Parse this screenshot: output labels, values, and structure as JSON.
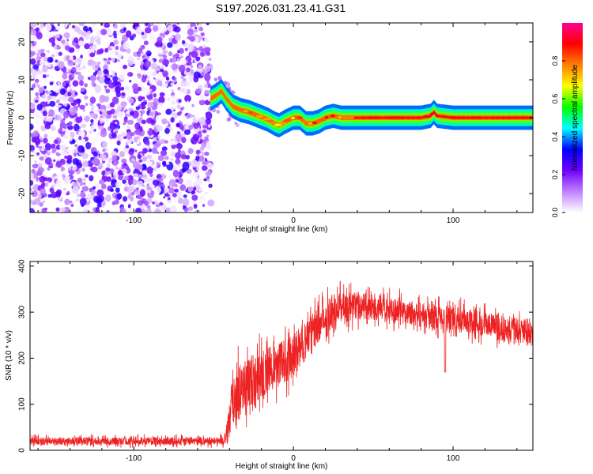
{
  "title": "S197.2026.031.23.41.G31",
  "chart_data": [
    {
      "type": "heatmap",
      "name": "spectrogram",
      "xlabel": "Height of straight line (km)",
      "ylabel": "Frequency (Hz)",
      "xlim": [
        -165,
        150
      ],
      "ylim": [
        -25,
        25
      ],
      "xticks": [
        -100,
        0,
        100
      ],
      "yticks": [
        -20,
        -10,
        0,
        10,
        20
      ],
      "noise_region_x": [
        -165,
        -52
      ],
      "signal_ridge": {
        "x": [
          -52,
          -48,
          -45,
          -42,
          -38,
          -33,
          -28,
          -22,
          -16,
          -12,
          -9,
          -5,
          0,
          4,
          8,
          12,
          16,
          20,
          25,
          30,
          40,
          60,
          80,
          86,
          88,
          90,
          100,
          120,
          150
        ],
        "y": [
          5,
          6,
          7,
          5,
          3,
          2,
          1.5,
          0.5,
          -0.5,
          -1.5,
          -2,
          -1,
          0,
          0,
          -1.5,
          -1.5,
          -1,
          0,
          0.5,
          0,
          0,
          0,
          0,
          0.5,
          1.5,
          0.5,
          0,
          0,
          0
        ]
      },
      "colorbar": {
        "label": "Normalized spectral amplitude",
        "range": [
          0,
          1
        ],
        "ticks": [
          "0.0",
          "0.2",
          "0.4",
          "0.6",
          "0.8"
        ],
        "colors": [
          "#ffffff",
          "#c080ff",
          "#7000ff",
          "#0000ff",
          "#00ffff",
          "#00ff00",
          "#ffff00",
          "#ff8000",
          "#ff0000",
          "#ff0090"
        ]
      }
    },
    {
      "type": "line",
      "name": "snr",
      "color": "#ee2222",
      "xlabel": "Height of straight line (km)",
      "ylabel": "SNR (10 * v/v)",
      "xlim": [
        -165,
        150
      ],
      "ylim": [
        0,
        410
      ],
      "xticks": [
        -100,
        0,
        100
      ],
      "yticks": [
        0,
        100,
        200,
        300,
        400
      ],
      "envelope": {
        "x": [
          -165,
          -50,
          -43,
          -40,
          -38,
          -35,
          -30,
          -20,
          -10,
          0,
          10,
          20,
          25,
          30,
          40,
          50,
          60,
          70,
          80,
          90,
          100,
          110,
          120,
          130,
          140,
          150
        ],
        "mean": [
          20,
          20,
          22,
          60,
          110,
          130,
          145,
          165,
          185,
          205,
          250,
          290,
          305,
          310,
          315,
          310,
          305,
          300,
          295,
          290,
          285,
          280,
          275,
          265,
          260,
          255
        ],
        "amplitude": [
          12,
          12,
          14,
          60,
          110,
          90,
          80,
          75,
          70,
          65,
          60,
          55,
          55,
          50,
          45,
          40,
          40,
          40,
          40,
          40,
          40,
          40,
          40,
          40,
          40,
          40
        ]
      },
      "dips": [
        {
          "x": 95,
          "y": 170
        }
      ]
    }
  ]
}
